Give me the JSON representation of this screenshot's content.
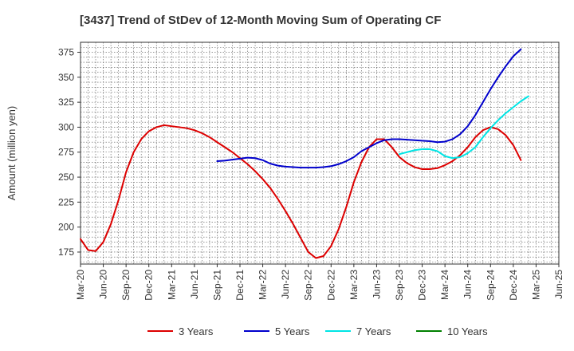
{
  "chart_data": {
    "type": "line",
    "title": "[3437]  Trend of StDev of 12-Month Moving Sum of Operating CF",
    "ylabel": "Amount (million yen)",
    "xlabel": "",
    "ylim": [
      163,
      385
    ],
    "y_ticks": [
      175,
      200,
      225,
      250,
      275,
      300,
      325,
      350,
      375
    ],
    "x_ticks": [
      "Mar-20",
      "Jun-20",
      "Sep-20",
      "Dec-20",
      "Mar-21",
      "Jun-21",
      "Sep-21",
      "Dec-21",
      "Mar-22",
      "Jun-22",
      "Sep-22",
      "Dec-22",
      "Mar-23",
      "Jun-23",
      "Sep-23",
      "Dec-23",
      "Mar-24",
      "Jun-24",
      "Sep-24",
      "Dec-24",
      "Mar-25",
      "Jun-25"
    ],
    "x_start": "Mar-20",
    "grid": true,
    "legend_position": "bottom",
    "series": [
      {
        "name": "3 Years",
        "color": "#dd0000",
        "start_index": 0,
        "values": [
          188,
          177,
          176,
          185,
          203,
          227,
          255,
          275,
          288,
          296,
          300,
          302,
          301,
          300,
          299,
          297,
          294,
          290,
          285,
          280,
          275,
          269,
          263,
          256,
          248,
          239,
          228,
          216,
          203,
          189,
          175,
          169,
          171,
          181,
          198,
          220,
          245,
          265,
          280,
          288,
          288,
          280,
          270,
          264,
          260,
          258,
          258,
          259,
          262,
          266,
          272,
          280,
          290,
          297,
          300,
          298,
          292,
          282,
          267
        ]
      },
      {
        "name": "5 Years",
        "color": "#0000cc",
        "start_index": 18,
        "values": [
          266,
          266.5,
          267.5,
          268.5,
          269.5,
          269,
          267,
          263.5,
          261.5,
          260.5,
          260,
          259.5,
          259.5,
          259.5,
          260,
          261,
          263,
          266,
          270,
          276,
          280,
          284,
          287,
          288,
          288,
          287.5,
          287,
          286.5,
          286,
          285,
          285.5,
          288,
          293,
          301,
          312,
          325,
          338,
          350,
          361,
          371,
          378
        ]
      },
      {
        "name": "7 Years",
        "color": "#00e5e5",
        "start_index": 42,
        "values": [
          273,
          275,
          277,
          278,
          278,
          276,
          271,
          269,
          270,
          274,
          280,
          290,
          299,
          307,
          314,
          320,
          326,
          331
        ]
      },
      {
        "name": "10 Years",
        "color": "#008000",
        "start_index": 0,
        "values": []
      }
    ]
  }
}
